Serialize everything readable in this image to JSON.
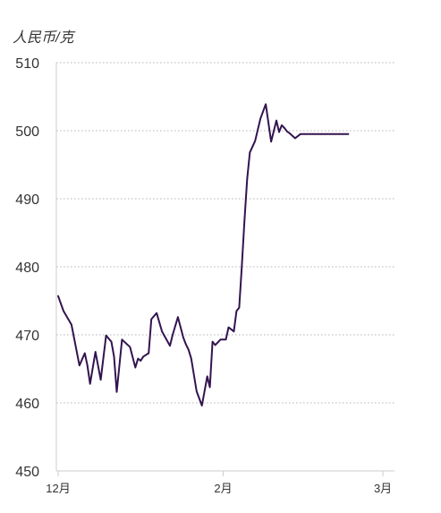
{
  "chart_data": {
    "type": "line",
    "ylabel": "人民币/克",
    "ylim": [
      450,
      510
    ],
    "yticks": [
      450,
      460,
      470,
      480,
      490,
      500,
      510
    ],
    "grid": true,
    "xlabels": [
      {
        "label": "12月",
        "x": 0
      },
      {
        "label": "2月",
        "x": 62
      },
      {
        "label": "3月",
        "x": 122
      }
    ],
    "xlim": [
      0,
      125
    ],
    "line_color": "#33144f",
    "series": [
      {
        "x": [
          0,
          2,
          5,
          8,
          10,
          11,
          12,
          14,
          16,
          18,
          20,
          21,
          22,
          24,
          27,
          29,
          30,
          31,
          32,
          34,
          35,
          37,
          39,
          40,
          42,
          43,
          45,
          47,
          48,
          49,
          50,
          52,
          54,
          56,
          57,
          58,
          59,
          61,
          62,
          63,
          64,
          66,
          67,
          68,
          69,
          70,
          71,
          72,
          74,
          76,
          78,
          80,
          82,
          83,
          84,
          85,
          86,
          87,
          89,
          91,
          92,
          93,
          94,
          95,
          96,
          97,
          98,
          100,
          101,
          102,
          103,
          104,
          105,
          107,
          108,
          109
        ],
        "y": [
          475.7,
          473.5,
          471.5,
          465.5,
          467.3,
          465.5,
          462.8,
          467.5,
          463.4,
          469.9,
          469.0,
          466.8,
          461.6,
          469.3,
          468.2,
          465.2,
          466.5,
          466.2,
          466.8,
          467.3,
          472.3,
          473.2,
          470.5,
          469.8,
          468.4,
          470.0,
          472.6,
          469.6,
          468.6,
          467.8,
          466.5,
          461.7,
          459.6,
          463.9,
          462.3,
          469.0,
          468.5,
          469.3,
          469.3,
          469.3,
          471.1,
          470.5,
          473.5,
          474.0,
          480.0,
          486.8,
          492.9,
          496.8,
          498.5,
          501.8,
          503.9,
          498.4,
          501.5,
          499.8,
          500.8,
          500.4,
          499.9,
          499.6,
          498.9,
          499.5,
          499.5,
          499.5,
          499.5,
          499.5,
          499.5,
          499.5,
          499.5,
          499.5,
          499.5,
          499.5,
          499.5,
          499.5,
          499.5,
          499.5,
          499.5,
          499.5
        ]
      }
    ]
  }
}
